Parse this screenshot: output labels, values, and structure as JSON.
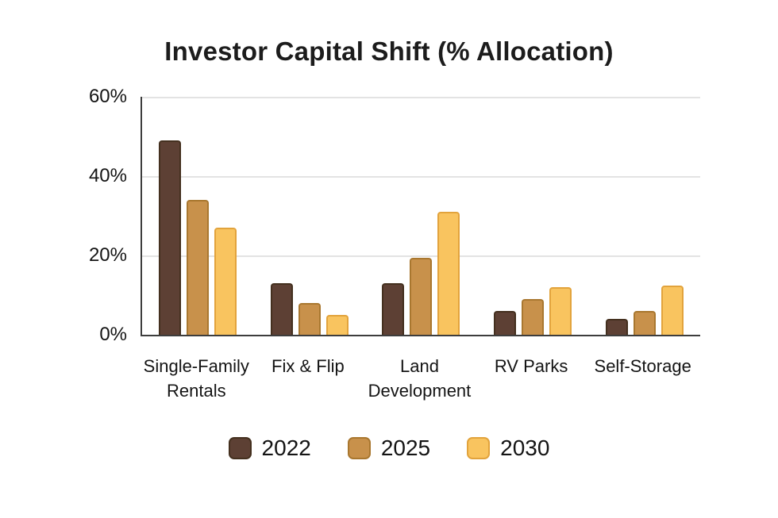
{
  "chart_data": {
    "type": "bar",
    "title": "Investor Capital Shift (% Allocation)",
    "xlabel": "",
    "ylabel": "",
    "ylim": [
      0,
      60
    ],
    "grid": true,
    "legend_position": "bottom",
    "categories": [
      "Single-Family Rentals",
      "Fix & Flip",
      "Land Development",
      "RV Parks",
      "Self-Storage"
    ],
    "categories_display": [
      [
        "Single-Family",
        "Rentals"
      ],
      [
        "Fix & Flip"
      ],
      [
        "Land",
        "Development"
      ],
      [
        "RV Parks"
      ],
      [
        "Self-Storage"
      ]
    ],
    "yticks": [
      {
        "value": 0,
        "label": "0%"
      },
      {
        "value": 20,
        "label": "20%"
      },
      {
        "value": 40,
        "label": "40%"
      },
      {
        "value": 60,
        "label": "60%"
      }
    ],
    "series": [
      {
        "name": "2022",
        "values": [
          49,
          13,
          13,
          6,
          4
        ],
        "fill": "#5D4034",
        "border": "#44301F"
      },
      {
        "name": "2025",
        "values": [
          34,
          8,
          19.5,
          9,
          6
        ],
        "fill": "#C8914B",
        "border": "#A9772F"
      },
      {
        "name": "2030",
        "values": [
          27,
          5,
          31,
          12,
          12.5
        ],
        "fill": "#F9C45F",
        "border": "#E2A33C"
      }
    ]
  },
  "colors": {
    "background": "#FFFFFF",
    "axis_line": "#3D3D3D",
    "gridline": "#E3E3E3",
    "title_text": "#1C1C1C",
    "label_text": "#141414"
  }
}
